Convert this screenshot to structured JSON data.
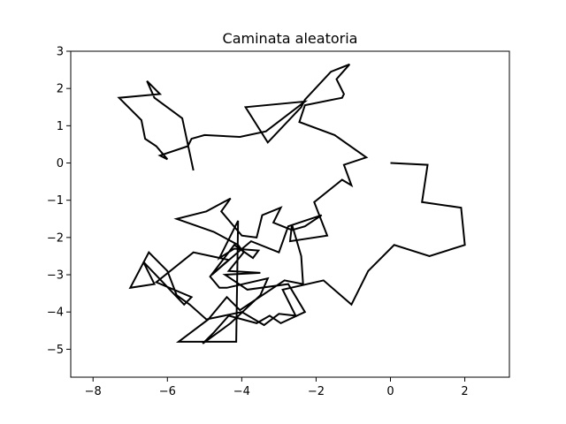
{
  "chart_data": {
    "type": "line",
    "title": "Caminata aleatoria",
    "xlabel": "",
    "ylabel": "",
    "xlim": [
      -8.6,
      3.2
    ],
    "ylim": [
      -5.75,
      3.0
    ],
    "xticks": [
      -8,
      -6,
      -4,
      -2,
      0,
      2
    ],
    "yticks": [
      -5,
      -4,
      -3,
      -2,
      -1,
      0,
      1,
      2,
      3
    ],
    "xtick_labels": [
      "−8",
      "−6",
      "−4",
      "−2",
      "0",
      "2"
    ],
    "ytick_labels": [
      "−5",
      "−4",
      "−3",
      "−2",
      "−1",
      "0",
      "1",
      "2",
      "3"
    ],
    "grid": false,
    "line_color": "#000000",
    "series": [
      {
        "x": [
          0.0,
          1.0,
          0.85,
          1.9,
          2.0,
          1.05,
          0.1,
          -0.6,
          -1.05,
          -1.8,
          -2.9,
          -2.55,
          -3.0,
          -3.4,
          -4.0,
          -4.95,
          -5.4,
          -5.75,
          -6.0,
          -6.5,
          -7.0,
          -6.35,
          -6.65,
          -5.55,
          -5.35,
          -6.3,
          -5.3,
          -4.35,
          -4.8,
          -4.05,
          -3.75,
          -3.0,
          -2.75,
          -1.85,
          -2.3,
          -2.65,
          -3.15,
          -2.95,
          -3.45,
          -3.6,
          -4.0,
          -4.55,
          -4.3,
          -4.95,
          -5.75,
          -4.75,
          -4.1,
          -3.95,
          -4.35,
          -3.5,
          -4.45,
          -3.85,
          -2.75,
          -2.3,
          -2.95,
          -3.25,
          -3.6,
          -4.35,
          -4.75,
          -5.05,
          -4.3,
          -3.5,
          -3.3,
          -4.4,
          -4.6,
          -4.85,
          -4.2,
          -3.7,
          -3.55,
          -4.2,
          -4.6,
          -4.1,
          -4.15,
          -5.7,
          -4.9,
          -4.4,
          -4.05,
          -2.85,
          -2.35,
          -2.4,
          -2.65,
          -2.7,
          -1.7,
          -2.05,
          -1.3,
          -1.05,
          -1.25,
          -0.65,
          -1.5,
          -2.45,
          -2.3,
          -1.3,
          -1.25,
          -1.45,
          -1.1,
          -1.6,
          -2.3,
          -2.4,
          -3.3,
          -3.9,
          -2.3,
          -3.35,
          -4.05,
          -5.0,
          -5.35,
          -5.45,
          -6.2,
          -6.0,
          -6.3,
          -6.6,
          -6.7,
          -7.3,
          -6.2,
          -6.55,
          -6.35,
          -5.6,
          -5.3
        ],
        "y": [
          0.0,
          -0.05,
          -1.05,
          -1.2,
          -2.2,
          -2.5,
          -2.2,
          -2.9,
          -3.8,
          -3.15,
          -3.4,
          -4.1,
          -4.05,
          -4.35,
          -4.0,
          -4.2,
          -3.8,
          -3.55,
          -2.9,
          -2.4,
          -3.35,
          -3.25,
          -2.65,
          -3.8,
          -3.6,
          -3.2,
          -2.4,
          -2.6,
          -3.0,
          -2.35,
          -2.1,
          -2.4,
          -1.7,
          -1.4,
          -1.7,
          -1.8,
          -1.6,
          -1.2,
          -1.4,
          -2.0,
          -1.95,
          -1.3,
          -0.95,
          -1.3,
          -1.5,
          -1.85,
          -2.2,
          -2.4,
          -2.9,
          -2.95,
          -3.0,
          -3.4,
          -3.25,
          -4.0,
          -4.3,
          -4.1,
          -4.3,
          -4.1,
          -4.55,
          -4.85,
          -4.3,
          -3.55,
          -3.1,
          -3.35,
          -3.35,
          -3.05,
          -2.2,
          -2.55,
          -2.35,
          -2.3,
          -2.55,
          -1.55,
          -4.8,
          -4.8,
          -4.2,
          -3.6,
          -3.95,
          -3.15,
          -3.25,
          -2.5,
          -1.65,
          -2.1,
          -1.95,
          -1.05,
          -0.45,
          -0.6,
          -0.05,
          0.15,
          0.75,
          1.1,
          1.55,
          1.75,
          1.85,
          2.25,
          2.65,
          2.45,
          1.7,
          1.5,
          0.55,
          1.5,
          1.65,
          0.85,
          0.7,
          0.75,
          0.65,
          0.45,
          0.2,
          0.1,
          0.45,
          0.65,
          1.15,
          1.75,
          1.85,
          2.2,
          1.75,
          1.2,
          -0.2
        ]
      }
    ]
  }
}
